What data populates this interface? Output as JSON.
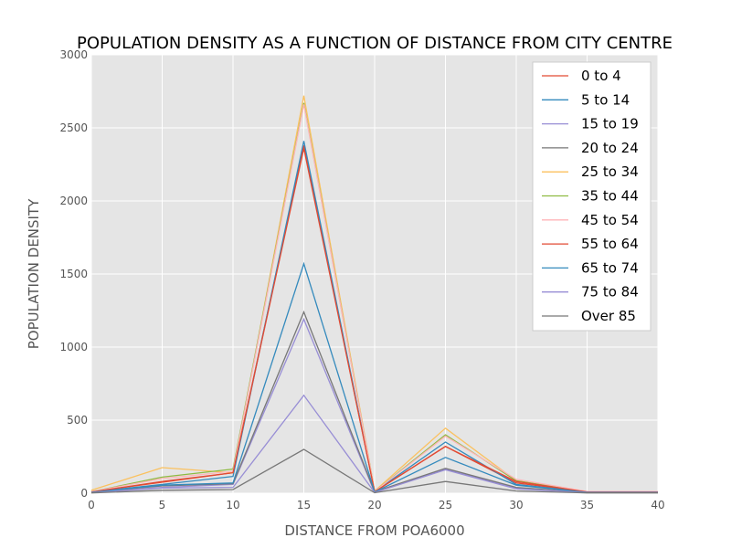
{
  "chart_data": {
    "type": "line",
    "title": "POPULATION DENSITY AS A FUNCTION OF DISTANCE FROM CITY CENTRE",
    "xlabel": "DISTANCE FROM POA6000",
    "ylabel": "POPULATION DENSITY",
    "xlim": [
      0,
      40
    ],
    "ylim": [
      0,
      3000
    ],
    "xticks": [
      0,
      5,
      10,
      15,
      20,
      25,
      30,
      35,
      40
    ],
    "yticks": [
      0,
      500,
      1000,
      1500,
      2000,
      2500,
      3000
    ],
    "grid": true,
    "legend_position": "top-right",
    "x": [
      0,
      5,
      10,
      15,
      20,
      25,
      30,
      35,
      40
    ],
    "series": [
      {
        "name": "0 to 4",
        "color": "#e24a33",
        "values": [
          10,
          75,
          140,
          2380,
          10,
          320,
          70,
          10,
          10
        ]
      },
      {
        "name": "5 to 14",
        "color": "#348abd",
        "values": [
          8,
          60,
          115,
          2410,
          10,
          350,
          60,
          8,
          8
        ]
      },
      {
        "name": "15 to 19",
        "color": "#988ed5",
        "values": [
          5,
          40,
          60,
          1190,
          5,
          165,
          35,
          5,
          5
        ]
      },
      {
        "name": "20 to 24",
        "color": "#777777",
        "values": [
          8,
          50,
          65,
          1240,
          10,
          170,
          40,
          5,
          5
        ]
      },
      {
        "name": "25 to 34",
        "color": "#fbc15e",
        "values": [
          20,
          175,
          140,
          2720,
          15,
          445,
          85,
          10,
          12
        ]
      },
      {
        "name": "35 to 44",
        "color": "#8eba42",
        "values": [
          10,
          110,
          165,
          2670,
          12,
          400,
          85,
          10,
          10
        ]
      },
      {
        "name": "45 to 54",
        "color": "#ffb5b8",
        "values": [
          10,
          100,
          150,
          2660,
          12,
          390,
          95,
          12,
          12
        ]
      },
      {
        "name": "55 to 64",
        "color": "#e24a33",
        "values": [
          8,
          80,
          140,
          2360,
          10,
          320,
          80,
          8,
          8
        ]
      },
      {
        "name": "65 to 74",
        "color": "#348abd",
        "values": [
          6,
          55,
          70,
          1570,
          8,
          245,
          55,
          6,
          6
        ]
      },
      {
        "name": "75 to 84",
        "color": "#988ed5",
        "values": [
          4,
          35,
          40,
          670,
          5,
          160,
          30,
          4,
          4
        ]
      },
      {
        "name": "Over 85",
        "color": "#777777",
        "values": [
          2,
          20,
          25,
          300,
          3,
          80,
          15,
          2,
          2
        ]
      }
    ]
  }
}
